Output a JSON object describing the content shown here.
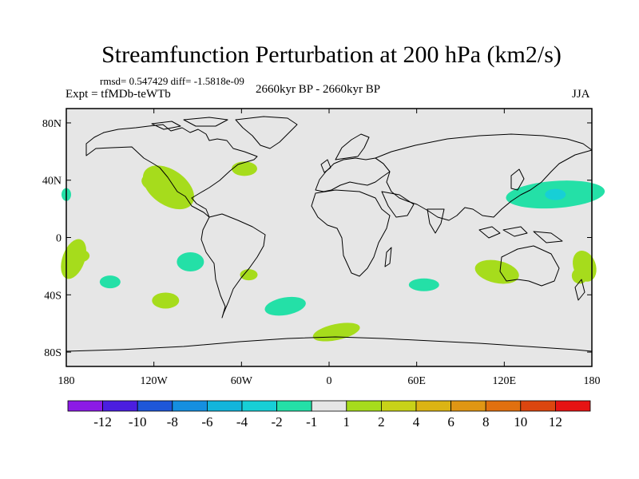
{
  "chart_data": {
    "type": "heatmap",
    "title": "Streamfunction Perturbation at 200 hPa (km2/s)",
    "stats_text": "rmsd= 0.547429 diff= -1.5818e-09",
    "experiment": "Expt = tfMDb-teWTb",
    "period": "2660kyr BP - 2660kyr BP",
    "season": "JJA",
    "map": {
      "projection": "cylindrical-equidistant",
      "background": "#e6e6e6",
      "lon_range": [
        -180,
        180
      ],
      "lat_range": [
        -90,
        90
      ],
      "x_ticks": [
        -180,
        -120,
        -60,
        0,
        60,
        120,
        180
      ],
      "x_tick_labels": [
        "180",
        "120W",
        "60W",
        "0",
        "60E",
        "120E",
        "180"
      ],
      "y_ticks": [
        80,
        40,
        0,
        -40,
        -80
      ],
      "y_tick_labels": [
        "80N",
        "40N",
        "0",
        "40S",
        "80S"
      ]
    },
    "colorbar": {
      "colors": [
        "#8c1ae6",
        "#4b1ee0",
        "#1e57d9",
        "#158fe0",
        "#12b5dc",
        "#17cfd6",
        "#24e0a7",
        "#e6e6e6",
        "#a6dc1c",
        "#c8d218",
        "#dcb414",
        "#e09614",
        "#e1700f",
        "#dc460f",
        "#e61414"
      ],
      "labels": [
        "-12",
        "-10",
        "-8",
        "-6",
        "-4",
        "-2",
        "-1",
        "1",
        "2",
        "4",
        "6",
        "8",
        "10",
        "12"
      ]
    },
    "features": [
      {
        "name": "north-america-west-coast-positive",
        "lon": -110,
        "lat": 35,
        "value": 1.5
      },
      {
        "name": "newfoundland-positive",
        "lon": -58,
        "lat": 48,
        "value": 1.5
      },
      {
        "name": "west-pacific-negative",
        "lon": 155,
        "lat": 30,
        "value": -1.5
      },
      {
        "name": "west-pacific-core-negative",
        "lon": 155,
        "lat": 30,
        "value": -2.5
      },
      {
        "name": "dateline-north-negative",
        "lon": -180,
        "lat": 30,
        "value": -1.5
      },
      {
        "name": "south-pacific-west-positive",
        "lon": -175,
        "lat": -15,
        "value": 1.5
      },
      {
        "name": "southwest-pacific-positive",
        "lon": 175,
        "lat": -20,
        "value": 1.5
      },
      {
        "name": "south-pacific-east-negative",
        "lon": -95,
        "lat": -17,
        "value": -1.5
      },
      {
        "name": "south-pacific-central-negative",
        "lon": -150,
        "lat": -31,
        "value": -1.5
      },
      {
        "name": "south-pacific-south-positive",
        "lon": -112,
        "lat": -44,
        "value": 1.5
      },
      {
        "name": "south-america-positive",
        "lon": -55,
        "lat": -26,
        "value": 1.5
      },
      {
        "name": "south-atlantic-negative",
        "lon": -30,
        "lat": -48,
        "value": -1.5
      },
      {
        "name": "south-atlantic-polar-positive",
        "lon": 5,
        "lat": -66,
        "value": 1.5
      },
      {
        "name": "indian-ocean-negative",
        "lon": 65,
        "lat": -33,
        "value": -1.5
      },
      {
        "name": "australia-west-positive",
        "lon": 115,
        "lat": -24,
        "value": 1.5
      }
    ]
  }
}
